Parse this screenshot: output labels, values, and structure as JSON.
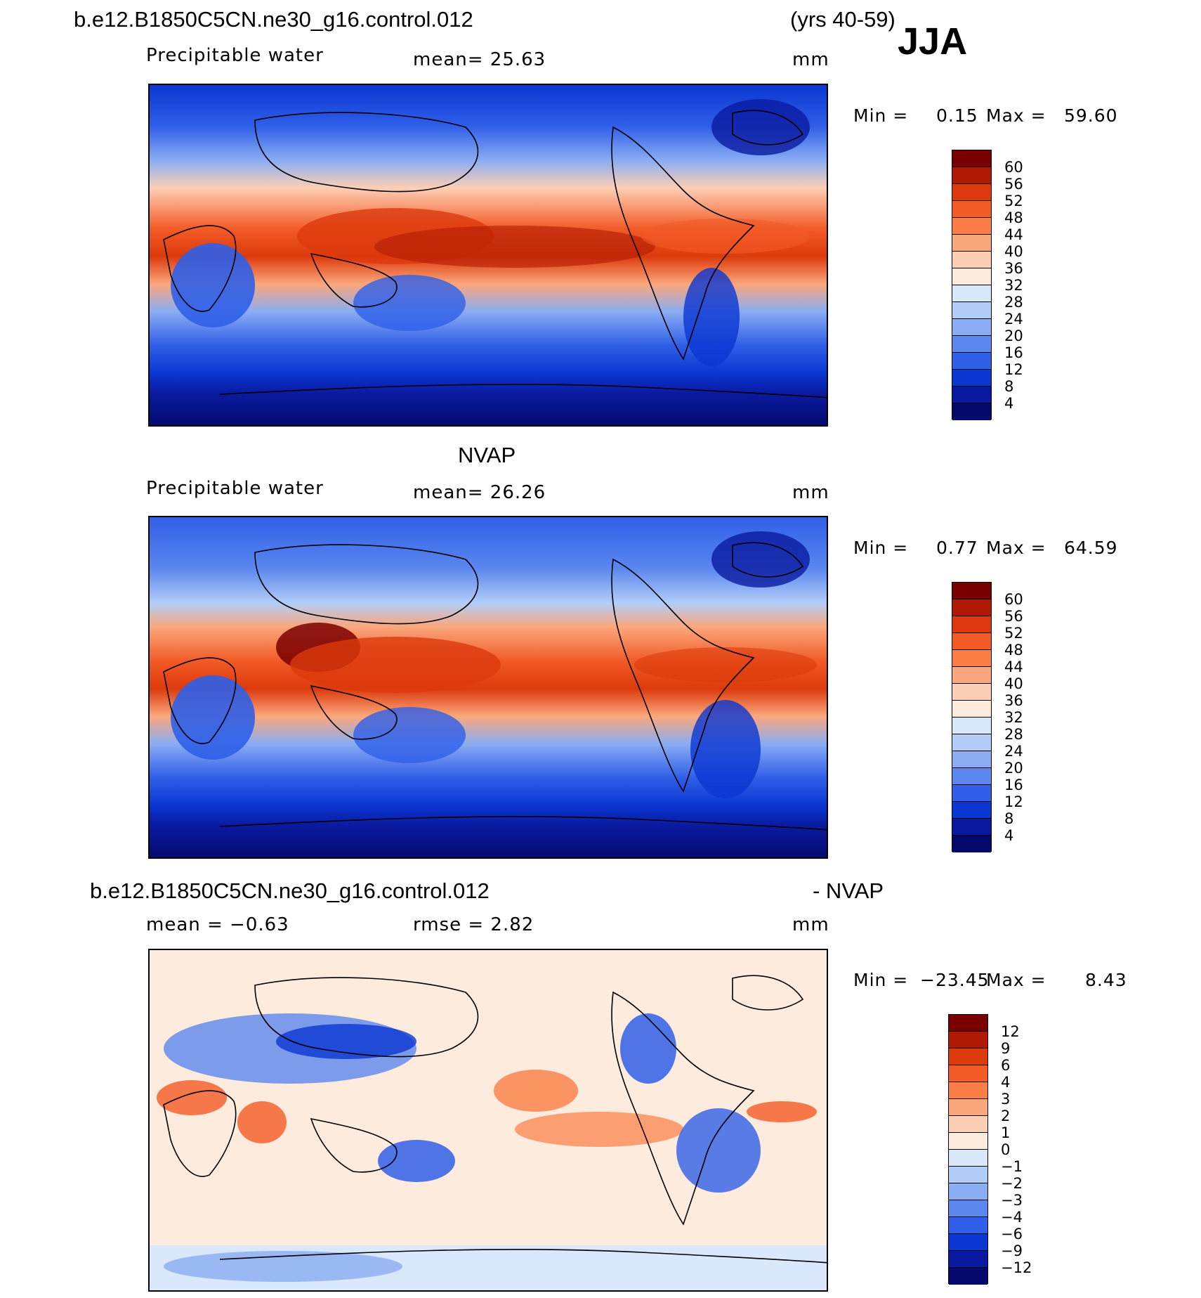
{
  "header": {
    "case_name": "b.e12.B1850C5CN.ne30_g16.control.012",
    "years": "(yrs 40-59)",
    "season": "JJA"
  },
  "panels": [
    {
      "id": "model",
      "title": "",
      "variable": "Precipitable water",
      "stat1": "mean=   25.63",
      "units": "mm",
      "min_label": "Min =",
      "min_value": "0.15",
      "max_label": "Max =",
      "max_value": "59.60",
      "colorbar_labels": [
        "60",
        "56",
        "52",
        "48",
        "44",
        "40",
        "36",
        "32",
        "28",
        "24",
        "20",
        "16",
        "12",
        "8",
        "4"
      ]
    },
    {
      "id": "obs",
      "title": "NVAP",
      "variable": "Precipitable water",
      "stat1": "mean=   26.26",
      "units": "mm",
      "min_label": "Min =",
      "min_value": "0.77",
      "max_label": "Max =",
      "max_value": "64.59",
      "colorbar_labels": [
        "60",
        "56",
        "52",
        "48",
        "44",
        "40",
        "36",
        "32",
        "28",
        "24",
        "20",
        "16",
        "12",
        "8",
        "4"
      ]
    },
    {
      "id": "diff",
      "title_left": "b.e12.B1850C5CN.ne30_g16.control.012",
      "title_right": "- NVAP",
      "stat1": "mean =   −0.63",
      "stat2": "rmse =    2.82",
      "units": "mm",
      "min_label": "Min =",
      "min_value": "−23.45",
      "max_label": "Max =",
      "max_value": "8.43",
      "colorbar_labels": [
        "12",
        "9",
        "6",
        "4",
        "3",
        "2",
        "1",
        "0",
        "−1",
        "−2",
        "−3",
        "−4",
        "−6",
        "−9",
        "−12"
      ]
    }
  ],
  "colors": {
    "scale": [
      "#7a0000",
      "#b01a05",
      "#dc3a0c",
      "#f25a26",
      "#fa7e45",
      "#fba77c",
      "#fdcfb5",
      "#fdebdd",
      "#d9e8fb",
      "#b2cdf8",
      "#8aadf3",
      "#5b87ee",
      "#2f5fe8",
      "#0a36d2",
      "#0a1aa0",
      "#05096b"
    ]
  }
}
